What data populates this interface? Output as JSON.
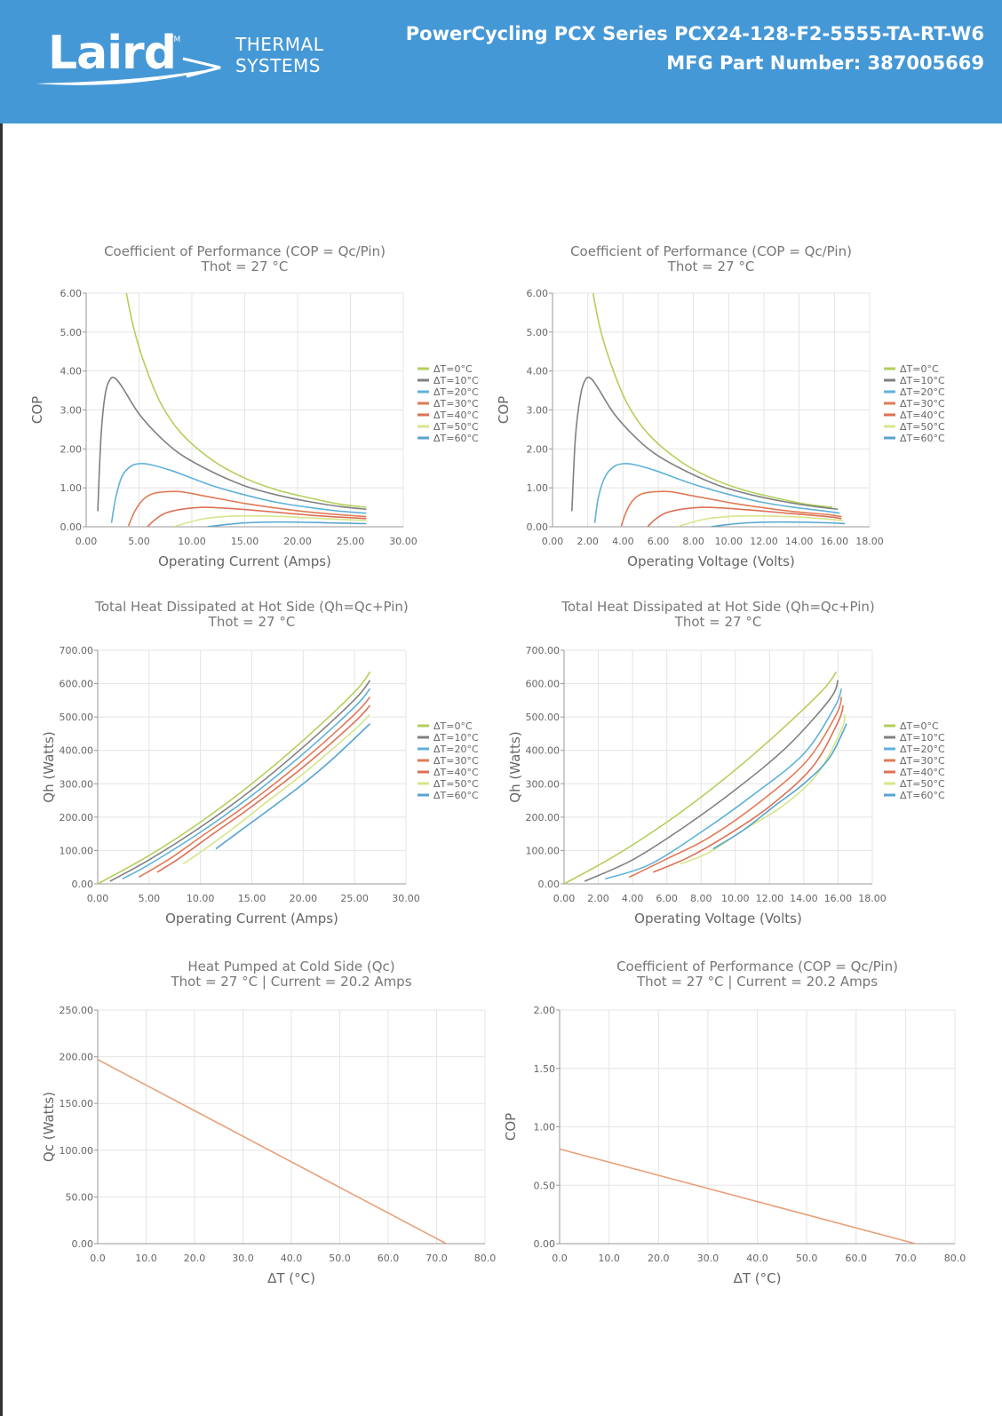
{
  "header": {
    "brand": "Laird",
    "tm": "TM",
    "division_line1": "THERMAL",
    "division_line2": "SYSTEMS",
    "product_line": "PowerCycling PCX Series PCX24-128-F2-5555-TA-RT-W6",
    "part_number_line": "MFG Part Number: 387005669",
    "background": "#4598d6"
  },
  "series_colors": [
    "#b3cf5a",
    "#808080",
    "#5fb2d9",
    "#e07b56",
    "#dd7055",
    "#d6e58a",
    "#57a5cf"
  ],
  "chart_data": [
    {
      "id": "cop-vs-current",
      "type": "line",
      "title": "Coefficient of Performance (COP = Qc/Pin)",
      "subtitle": "Thot = 27 °C",
      "xlabel": "Operating Current (Amps)",
      "ylabel": "COP",
      "xlim": [
        0,
        30
      ],
      "ylim": [
        0,
        6
      ],
      "xticks": [
        "0.00",
        "5.00",
        "10.00",
        "15.00",
        "20.00",
        "25.00",
        "30.00"
      ],
      "yticks": [
        "0.00",
        "1.00",
        "2.00",
        "3.00",
        "4.00",
        "5.00",
        "6.00"
      ],
      "grid": true,
      "legend": "right",
      "series": [
        {
          "name": "ΔT=0°C",
          "x": [
            3.8,
            4.5,
            5.5,
            7,
            9,
            12,
            15,
            18,
            21,
            24,
            26.5
          ],
          "y": [
            6.0,
            5.1,
            4.2,
            3.2,
            2.4,
            1.7,
            1.25,
            0.95,
            0.75,
            0.58,
            0.5
          ]
        },
        {
          "name": "ΔT=10°C",
          "x": [
            1.1,
            1.4,
            1.8,
            2.3,
            2.8,
            3.5,
            5,
            7,
            9,
            12,
            15,
            18,
            21,
            24,
            26.5
          ],
          "y": [
            0.4,
            2.3,
            3.4,
            3.8,
            3.8,
            3.55,
            2.9,
            2.3,
            1.85,
            1.4,
            1.05,
            0.82,
            0.65,
            0.52,
            0.45
          ]
        },
        {
          "name": "ΔT=20°C",
          "x": [
            2.4,
            2.8,
            3.4,
            4.2,
            5,
            6,
            8,
            10,
            12,
            15,
            18,
            21,
            24,
            26.5
          ],
          "y": [
            0.1,
            0.75,
            1.3,
            1.55,
            1.62,
            1.6,
            1.45,
            1.25,
            1.05,
            0.82,
            0.63,
            0.5,
            0.4,
            0.35
          ]
        },
        {
          "name": "ΔT=30°C",
          "x": [
            4,
            4.6,
            5.4,
            6.3,
            7.5,
            9,
            11,
            13,
            15,
            18,
            21,
            24,
            26.5
          ],
          "y": [
            0.02,
            0.4,
            0.7,
            0.85,
            0.9,
            0.9,
            0.8,
            0.7,
            0.6,
            0.48,
            0.38,
            0.31,
            0.26
          ]
        },
        {
          "name": "ΔT=40°C",
          "x": [
            5.8,
            6.5,
            7.5,
            9,
            11,
            13,
            16,
            19,
            22,
            24.5,
            26.5
          ],
          "y": [
            0.0,
            0.18,
            0.35,
            0.45,
            0.5,
            0.48,
            0.42,
            0.35,
            0.28,
            0.24,
            0.21
          ]
        },
        {
          "name": "ΔT=50°C",
          "x": [
            8.3,
            9.5,
            11,
            13,
            15,
            18,
            21,
            24,
            26.5
          ],
          "y": [
            0.0,
            0.1,
            0.2,
            0.26,
            0.28,
            0.27,
            0.23,
            0.19,
            0.16
          ]
        },
        {
          "name": "ΔT=60°C",
          "x": [
            11.5,
            13,
            15,
            17,
            20,
            23,
            26.5
          ],
          "y": [
            0.0,
            0.05,
            0.1,
            0.12,
            0.12,
            0.1,
            0.08
          ]
        }
      ]
    },
    {
      "id": "cop-vs-voltage",
      "type": "line",
      "title": "Coefficient of Performance (COP = Qc/Pin)",
      "subtitle": "Thot = 27 °C",
      "xlabel": "Operating Voltage (Volts)",
      "ylabel": "COP",
      "xlim": [
        0,
        18
      ],
      "ylim": [
        0,
        6
      ],
      "xticks": [
        "0.00",
        "2.00",
        "4.00",
        "6.00",
        "8.00",
        "10.00",
        "12.00",
        "14.00",
        "16.00",
        "18.00"
      ],
      "yticks": [
        "0.00",
        "1.00",
        "2.00",
        "3.00",
        "4.00",
        "5.00",
        "6.00"
      ],
      "grid": true,
      "legend": "right",
      "series": [
        {
          "name": "ΔT=0°C",
          "x": [
            2.3,
            2.7,
            3.3,
            4.2,
            5.4,
            7.2,
            9,
            10.8,
            12.6,
            14.4,
            15.9
          ],
          "y": [
            6.0,
            5.1,
            4.2,
            3.2,
            2.4,
            1.7,
            1.25,
            0.95,
            0.75,
            0.58,
            0.5
          ]
        },
        {
          "name": "ΔT=10°C",
          "x": [
            1.1,
            1.3,
            1.6,
            1.9,
            2.2,
            2.6,
            3.5,
            4.7,
            5.9,
            7.7,
            9.5,
            11.3,
            13.1,
            14.9,
            16.2
          ],
          "y": [
            0.4,
            2.3,
            3.4,
            3.8,
            3.8,
            3.55,
            2.9,
            2.3,
            1.85,
            1.4,
            1.05,
            0.82,
            0.65,
            0.52,
            0.45
          ]
        },
        {
          "name": "ΔT=20°C",
          "x": [
            2.4,
            2.6,
            3,
            3.5,
            4,
            4.6,
            5.8,
            7,
            8.3,
            10.1,
            11.9,
            13.7,
            15.5,
            16.3
          ],
          "y": [
            0.1,
            0.75,
            1.3,
            1.55,
            1.62,
            1.6,
            1.45,
            1.25,
            1.05,
            0.82,
            0.63,
            0.5,
            0.4,
            0.35
          ]
        },
        {
          "name": "ΔT=30°C",
          "x": [
            3.9,
            4.2,
            4.6,
            5.1,
            5.8,
            6.7,
            7.9,
            9.1,
            10.3,
            12.1,
            13.9,
            15.7,
            16.4
          ],
          "y": [
            0.02,
            0.4,
            0.7,
            0.85,
            0.9,
            0.9,
            0.8,
            0.7,
            0.6,
            0.48,
            0.38,
            0.31,
            0.26
          ]
        },
        {
          "name": "ΔT=40°C",
          "x": [
            5.4,
            5.8,
            6.4,
            7.3,
            8.5,
            9.7,
            11.5,
            13.3,
            15.1,
            16,
            16.4
          ],
          "y": [
            0.0,
            0.18,
            0.35,
            0.45,
            0.5,
            0.48,
            0.42,
            0.35,
            0.28,
            0.24,
            0.21
          ]
        },
        {
          "name": "ΔT=50°C",
          "x": [
            7.1,
            7.8,
            8.7,
            9.9,
            11.1,
            12.9,
            14.7,
            15.8,
            16.5
          ],
          "y": [
            0.0,
            0.1,
            0.2,
            0.26,
            0.28,
            0.27,
            0.23,
            0.19,
            0.16
          ]
        },
        {
          "name": "ΔT=60°C",
          "x": [
            9,
            9.8,
            11,
            12.2,
            14,
            15.8,
            16.6
          ],
          "y": [
            0.0,
            0.05,
            0.1,
            0.12,
            0.12,
            0.1,
            0.08
          ]
        }
      ]
    },
    {
      "id": "qh-vs-current",
      "type": "line",
      "title": "Total Heat Dissipated at Hot Side (Qh=Qc+Pin)",
      "subtitle": "Thot = 27 °C",
      "xlabel": "Operating Current (Amps)",
      "ylabel": "Qh (Watts)",
      "xlim": [
        0,
        30
      ],
      "ylim": [
        0,
        700
      ],
      "xticks": [
        "0.00",
        "5.00",
        "10.00",
        "15.00",
        "20.00",
        "25.00",
        "30.00"
      ],
      "yticks": [
        "0.00",
        "100.00",
        "200.00",
        "300.00",
        "400.00",
        "500.00",
        "600.00",
        "700.00"
      ],
      "grid": true,
      "legend": "right",
      "series": [
        {
          "name": "ΔT=0°C",
          "x": [
            0,
            5,
            10,
            15,
            20,
            25,
            26.5
          ],
          "y": [
            0,
            85,
            185,
            300,
            430,
            575,
            635
          ]
        },
        {
          "name": "ΔT=10°C",
          "x": [
            1.2,
            5,
            10,
            15,
            20,
            25,
            26.5
          ],
          "y": [
            8,
            72,
            170,
            282,
            410,
            552,
            610
          ]
        },
        {
          "name": "ΔT=20°C",
          "x": [
            2.4,
            5,
            10,
            15,
            20,
            25,
            26.5
          ],
          "y": [
            15,
            58,
            155,
            265,
            390,
            530,
            585
          ]
        },
        {
          "name": "ΔT=30°C",
          "x": [
            4,
            7,
            10,
            15,
            20,
            25,
            26.5
          ],
          "y": [
            20,
            75,
            140,
            248,
            370,
            508,
            560
          ]
        },
        {
          "name": "ΔT=40°C",
          "x": [
            5.8,
            8,
            11,
            15,
            20,
            25,
            26.5
          ],
          "y": [
            35,
            78,
            145,
            232,
            350,
            485,
            535
          ]
        },
        {
          "name": "ΔT=50°C",
          "x": [
            8.3,
            10,
            13,
            16,
            20,
            25,
            26.5
          ],
          "y": [
            60,
            95,
            162,
            235,
            330,
            462,
            508
          ]
        },
        {
          "name": "ΔT=60°C",
          "x": [
            11.5,
            14,
            17,
            20,
            23,
            26.5
          ],
          "y": [
            105,
            162,
            230,
            300,
            378,
            480
          ]
        }
      ]
    },
    {
      "id": "qh-vs-voltage",
      "type": "line",
      "title": "Total Heat Dissipated at Hot Side (Qh=Qc+Pin)",
      "subtitle": "Thot = 27 °C",
      "xlabel": "Operating Voltage (Volts)",
      "ylabel": "Qh (Watts)",
      "xlim": [
        0,
        18
      ],
      "ylim": [
        0,
        700
      ],
      "xticks": [
        "0.00",
        "2.00",
        "4.00",
        "6.00",
        "8.00",
        "10.00",
        "12.00",
        "14.00",
        "16.00",
        "18.00"
      ],
      "yticks": [
        "0.00",
        "100.00",
        "200.00",
        "300.00",
        "400.00",
        "500.00",
        "600.00",
        "700.00"
      ],
      "grid": true,
      "legend": "right",
      "series": [
        {
          "name": "ΔT=0°C",
          "x": [
            0,
            3,
            6,
            9,
            12,
            15,
            15.9
          ],
          "y": [
            0,
            85,
            185,
            300,
            430,
            575,
            635
          ]
        },
        {
          "name": "ΔT=10°C",
          "x": [
            1.2,
            4,
            7,
            10,
            13,
            15.5,
            16
          ],
          "y": [
            8,
            72,
            170,
            282,
            410,
            552,
            610
          ]
        },
        {
          "name": "ΔT=20°C",
          "x": [
            2.4,
            5,
            8,
            11,
            14,
            15.8,
            16.2
          ],
          "y": [
            15,
            58,
            155,
            265,
            390,
            530,
            585
          ]
        },
        {
          "name": "ΔT=30°C",
          "x": [
            3.8,
            6,
            8.5,
            11.5,
            14.2,
            15.9,
            16.2
          ],
          "y": [
            20,
            75,
            140,
            248,
            370,
            508,
            560
          ]
        },
        {
          "name": "ΔT=40°C",
          "x": [
            5.2,
            7.2,
            9.5,
            12,
            14.5,
            16,
            16.3
          ],
          "y": [
            35,
            78,
            145,
            232,
            350,
            485,
            535
          ]
        },
        {
          "name": "ΔT=50°C",
          "x": [
            6.8,
            8.5,
            10.5,
            12.8,
            14.8,
            16.2,
            16.4
          ],
          "y": [
            60,
            95,
            162,
            235,
            330,
            462,
            508
          ]
        },
        {
          "name": "ΔT=60°C",
          "x": [
            8.7,
            10.5,
            12.2,
            14,
            15.5,
            16.5
          ],
          "y": [
            105,
            162,
            230,
            300,
            378,
            480
          ]
        }
      ]
    },
    {
      "id": "qc-vs-dt",
      "type": "line",
      "title": "Heat Pumped at Cold Side (Qc)",
      "subtitle": "Thot = 27 °C | Current = 20.2 Amps",
      "xlabel": "ΔT (°C)",
      "ylabel": "Qc (Watts)",
      "xlim": [
        0,
        80
      ],
      "ylim": [
        0,
        250
      ],
      "xticks": [
        "0.0",
        "10.0",
        "20.0",
        "30.0",
        "40.0",
        "50.0",
        "60.0",
        "70.0",
        "80.0"
      ],
      "yticks": [
        "0.00",
        "50.00",
        "100.00",
        "150.00",
        "200.00",
        "250.00"
      ],
      "grid": true,
      "legend": "none",
      "series": [
        {
          "name": "Qc",
          "x": [
            0,
            72
          ],
          "y": [
            197,
            0
          ]
        }
      ]
    },
    {
      "id": "cop-vs-dt",
      "type": "line",
      "title": "Coefficient of Performance (COP = Qc/Pin)",
      "subtitle": "Thot = 27 °C | Current = 20.2 Amps",
      "xlabel": "ΔT (°C)",
      "ylabel": "COP",
      "xlim": [
        0,
        80
      ],
      "ylim": [
        0,
        2
      ],
      "xticks": [
        "0.0",
        "10.0",
        "20.0",
        "30.0",
        "40.0",
        "50.0",
        "60.0",
        "70.0",
        "80.0"
      ],
      "yticks": [
        "0.00",
        "0.50",
        "1.00",
        "1.50",
        "2.00"
      ],
      "grid": true,
      "legend": "none",
      "series": [
        {
          "name": "COP",
          "x": [
            0,
            72
          ],
          "y": [
            0.81,
            0
          ]
        }
      ]
    }
  ]
}
